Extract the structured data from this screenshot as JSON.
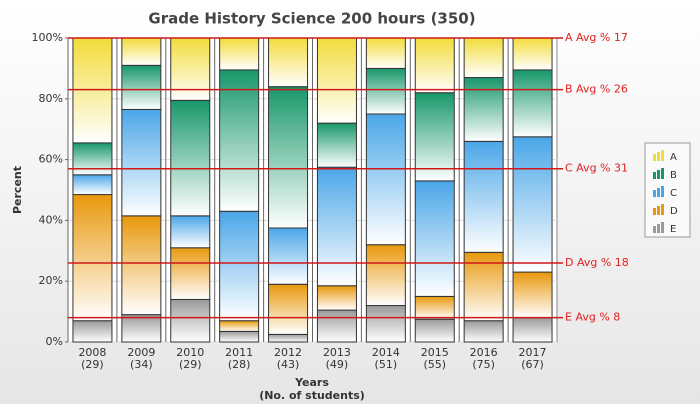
{
  "chart_data": {
    "type": "stacked_bar_100",
    "title": "Grade History Science 200 hours (350)",
    "y_label": "Percent",
    "x_label": "Years",
    "x_sublabel": "(No. of students)",
    "categories": [
      "2008",
      "2009",
      "2010",
      "2011",
      "2012",
      "2013",
      "2014",
      "2015",
      "2016",
      "2017"
    ],
    "category_sublabels": [
      "(29)",
      "(34)",
      "(29)",
      "(28)",
      "(43)",
      "(49)",
      "(51)",
      "(55)",
      "(75)",
      "(67)"
    ],
    "ylim": [
      0,
      100
    ],
    "yticks": [
      {
        "value": 0,
        "label": "0%"
      },
      {
        "value": 20,
        "label": "20%"
      },
      {
        "value": 40,
        "label": "40%"
      },
      {
        "value": 60,
        "label": "60%"
      },
      {
        "value": 80,
        "label": "80%"
      },
      {
        "value": 100,
        "label": "100%"
      }
    ],
    "grid": true,
    "legend": "right",
    "series": [
      {
        "name": "E",
        "color": "#9a9a9a",
        "values": [
          7,
          9,
          14,
          3.5,
          2.5,
          10.5,
          12,
          7.5,
          7,
          8
        ]
      },
      {
        "name": "D",
        "color": "#e8980c",
        "values": [
          41.5,
          32.5,
          17,
          3.5,
          16.5,
          8,
          20,
          7.5,
          22.5,
          15
        ]
      },
      {
        "name": "C",
        "color": "#4aa6e8",
        "values": [
          6.5,
          35,
          10.5,
          36,
          18.5,
          39,
          43,
          38,
          36.5,
          44.5
        ]
      },
      {
        "name": "B",
        "color": "#17976a",
        "values": [
          10.5,
          14.5,
          38,
          46.5,
          46.5,
          14.5,
          15,
          29,
          21,
          22
        ]
      },
      {
        "name": "A",
        "color": "#f2dc3a",
        "values": [
          34.5,
          9,
          20.5,
          10.5,
          16,
          28,
          10,
          18,
          13,
          10.5
        ]
      }
    ],
    "avg_lines": [
      {
        "label": "A Avg % 17",
        "value": 100
      },
      {
        "label": "B Avg % 26",
        "value": 83
      },
      {
        "label": "C Avg % 31",
        "value": 57
      },
      {
        "label": "D Avg % 18",
        "value": 26
      },
      {
        "label": "E Avg % 8",
        "value": 8
      }
    ]
  }
}
